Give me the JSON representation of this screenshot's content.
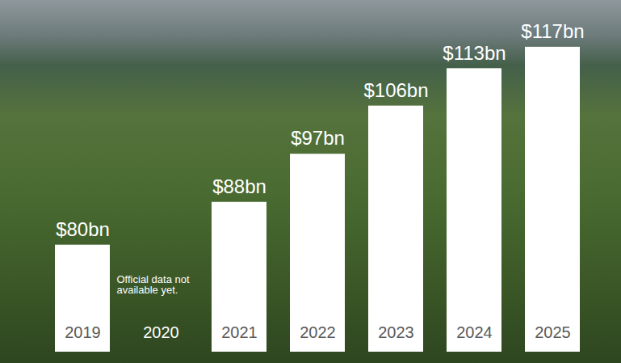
{
  "chart_data": {
    "type": "bar",
    "categories": [
      "2019",
      "2020",
      "2021",
      "2022",
      "2023",
      "2024",
      "2025"
    ],
    "values": [
      80,
      null,
      88,
      97,
      106,
      113,
      117
    ],
    "value_labels": [
      "$80bn",
      null,
      "$88bn",
      "$97bn",
      "$106bn",
      "$113bn",
      "$117bn"
    ],
    "color": "#ffffff",
    "ylim": [
      60,
      120
    ],
    "data_labels": true,
    "tick_labels": "x",
    "annotations": [
      {
        "text": "Official data not available yet.",
        "category": "2020"
      }
    ]
  }
}
